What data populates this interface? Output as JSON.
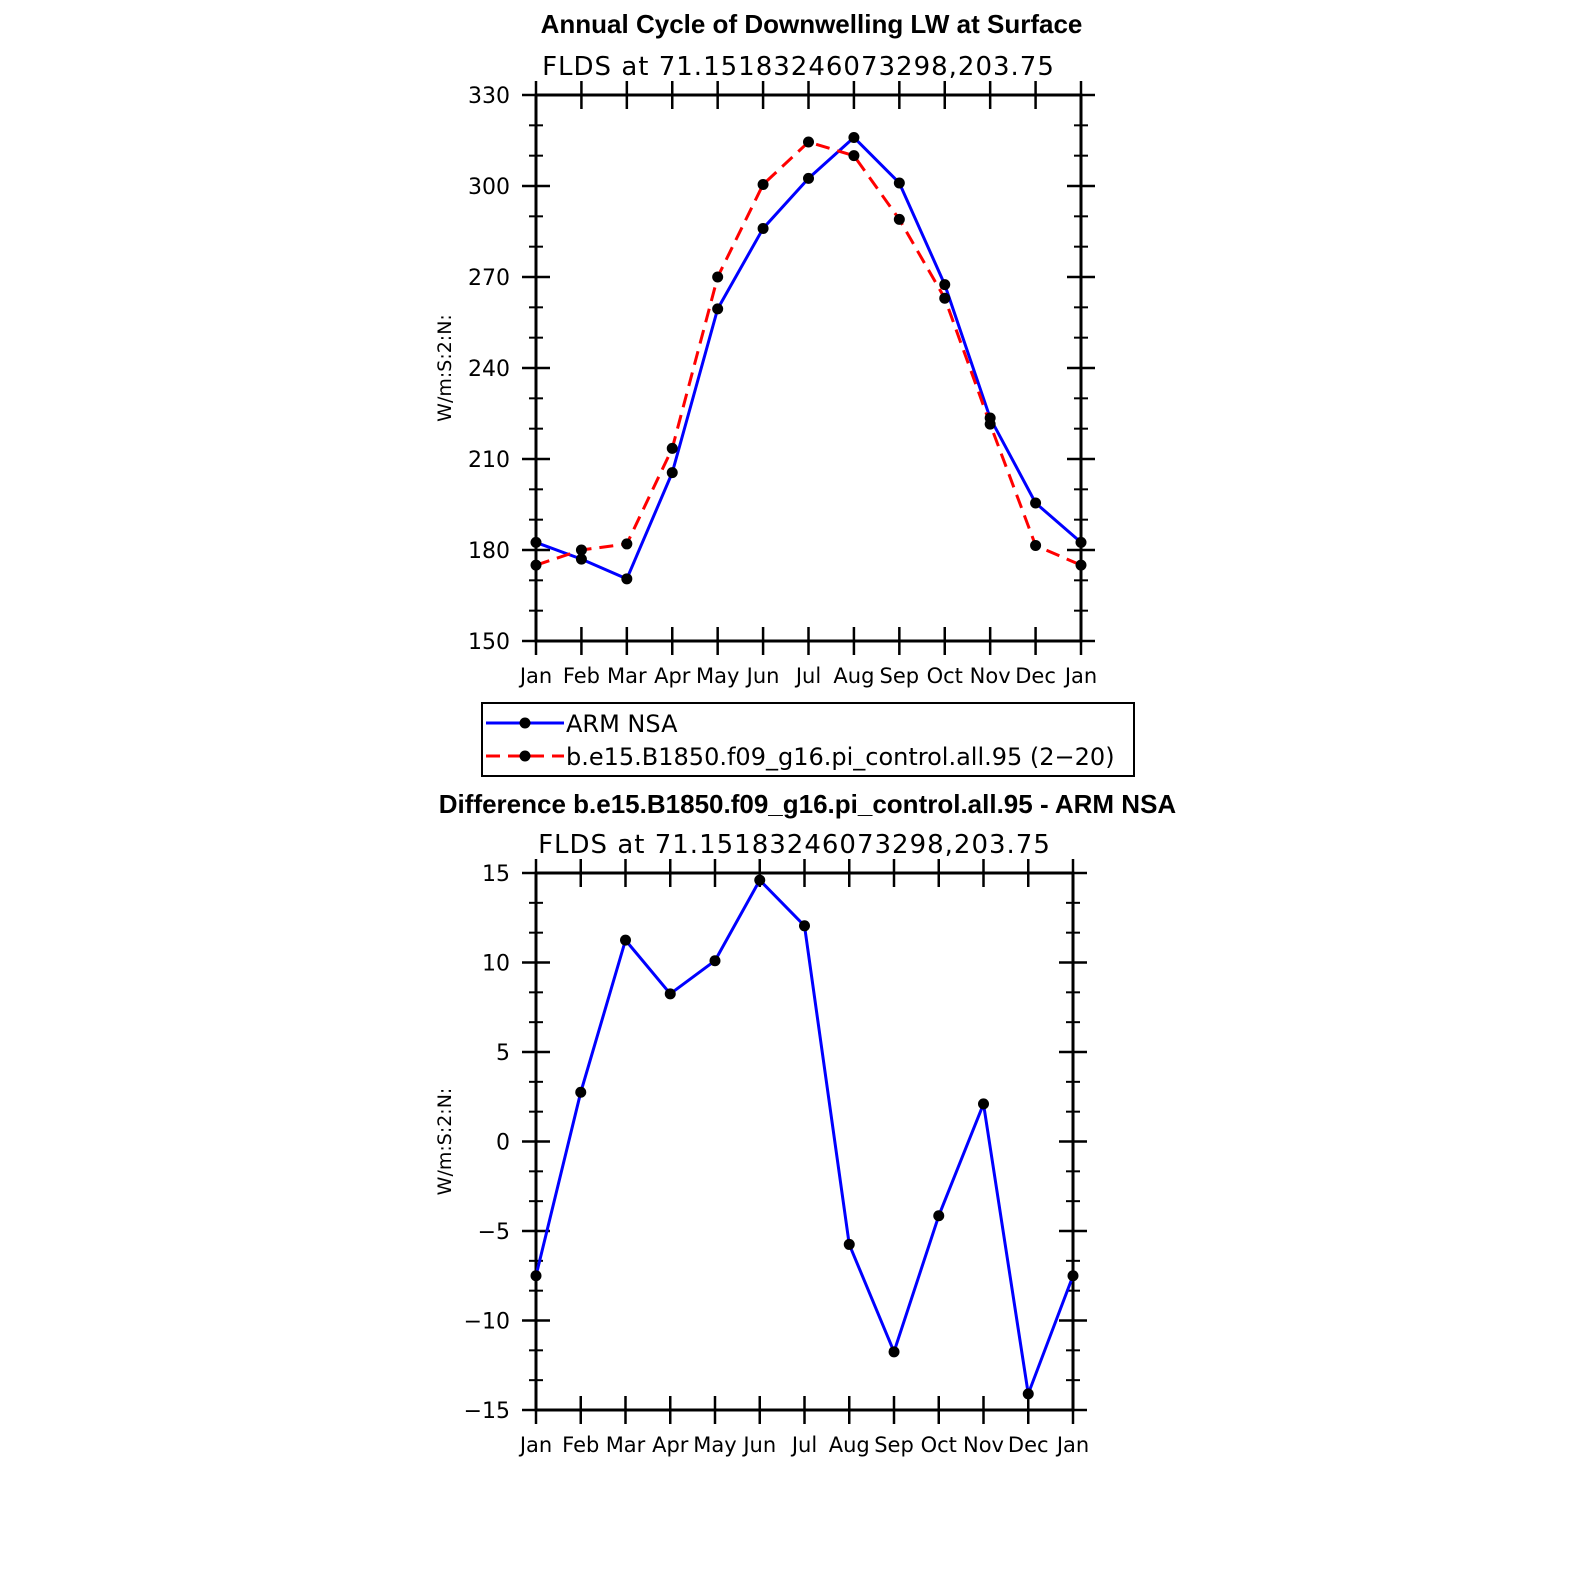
{
  "chart_data": [
    {
      "type": "line",
      "title": "Annual Cycle of Downwelling LW at Surface",
      "subtitle": "FLDS at 71.15183246073298,203.75",
      "ylabel": "W/m:S:2:N:",
      "xlabel": "",
      "ylim": [
        150,
        330
      ],
      "yticks": [
        "150",
        "180",
        "210",
        "240",
        "270",
        "300",
        "330"
      ],
      "categories": [
        "Jan",
        "Feb",
        "Mar",
        "Apr",
        "May",
        "Jun",
        "Jul",
        "Aug",
        "Sep",
        "Oct",
        "Nov",
        "Dec",
        "Jan"
      ],
      "series": [
        {
          "name": "ARM NSA",
          "color": "#0000ff",
          "dash": "solid",
          "values": [
            182.5,
            177,
            170.5,
            205.5,
            259.5,
            286,
            302.5,
            316,
            301,
            267.5,
            223.5,
            195.5,
            182.5
          ]
        },
        {
          "name": "b.e15.B1850.f09_g16.pi_control.all.95 (2−20)",
          "color": "#ff0000",
          "dash": "dashed",
          "values": [
            175,
            180,
            182,
            213.5,
            270,
            300.5,
            314.5,
            310,
            289,
            263,
            221.5,
            181.5,
            175
          ]
        }
      ],
      "grid": false,
      "legend_position": "bottom"
    },
    {
      "type": "line",
      "title": "Difference b.e15.B1850.f09_g16.pi_control.all.95 - ARM NSA",
      "subtitle": "FLDS at 71.15183246073298,203.75",
      "ylabel": "W/m:S:2:N:",
      "xlabel": "",
      "ylim": [
        -15,
        15
      ],
      "yticks": [
        "−15",
        "−10",
        "−5",
        "0",
        "5",
        "10",
        "15"
      ],
      "categories": [
        "Jan",
        "Feb",
        "Mar",
        "Apr",
        "May",
        "Jun",
        "Jul",
        "Aug",
        "Sep",
        "Oct",
        "Nov",
        "Dec",
        "Jan"
      ],
      "series": [
        {
          "color": "#0000ff",
          "dash": "solid",
          "values": [
            -7.5,
            2.75,
            11.25,
            8.25,
            10.1,
            14.6,
            12.05,
            -5.75,
            -11.75,
            -4.15,
            2.1,
            -14.1,
            -7.5
          ]
        }
      ],
      "grid": false
    }
  ]
}
